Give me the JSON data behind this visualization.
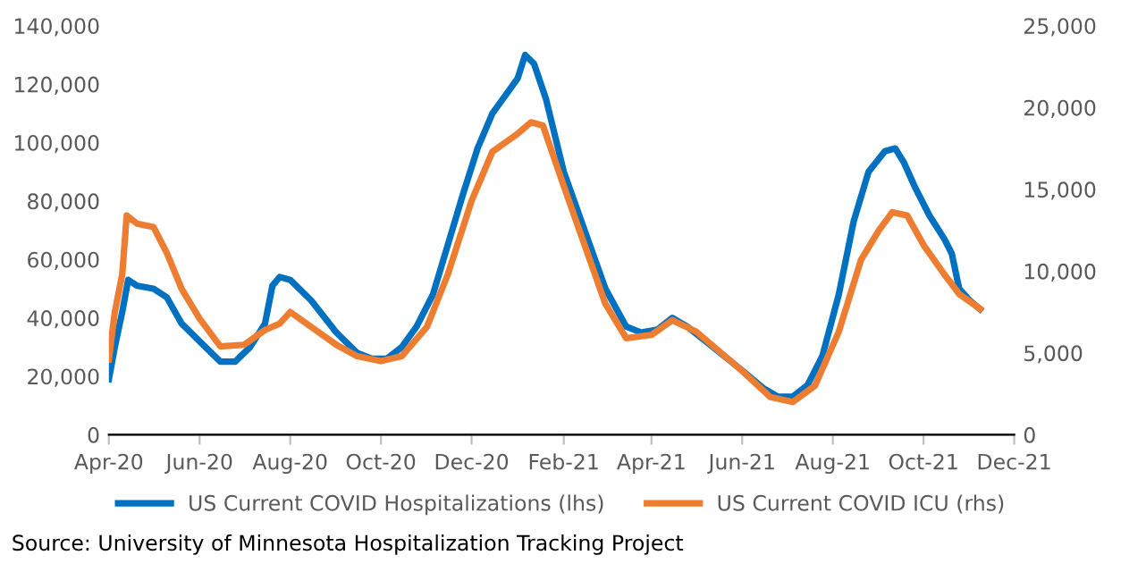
{
  "chart_data": {
    "type": "line",
    "xlim": [
      "2020-04-01",
      "2021-12-01"
    ],
    "xticks": [
      {
        "value": "2020-04-01",
        "label": "Apr-20"
      },
      {
        "value": "2020-06-01",
        "label": "Jun-20"
      },
      {
        "value": "2020-08-01",
        "label": "Aug-20"
      },
      {
        "value": "2020-10-01",
        "label": "Oct-20"
      },
      {
        "value": "2020-12-01",
        "label": "Dec-20"
      },
      {
        "value": "2021-02-01",
        "label": "Feb-21"
      },
      {
        "value": "2021-04-01",
        "label": "Apr-21"
      },
      {
        "value": "2021-06-01",
        "label": "Jun-21"
      },
      {
        "value": "2021-08-01",
        "label": "Aug-21"
      },
      {
        "value": "2021-10-01",
        "label": "Oct-21"
      },
      {
        "value": "2021-12-01",
        "label": "Dec-21"
      }
    ],
    "ylim": [
      0,
      140000
    ],
    "yticks": [
      {
        "value": 0,
        "label": "0"
      },
      {
        "value": 20000,
        "label": "20,000"
      },
      {
        "value": 40000,
        "label": "40,000"
      },
      {
        "value": 60000,
        "label": "60,000"
      },
      {
        "value": 80000,
        "label": "80,000"
      },
      {
        "value": 100000,
        "label": "100,000"
      },
      {
        "value": 120000,
        "label": "120,000"
      },
      {
        "value": 140000,
        "label": "140,000"
      }
    ],
    "y2lim": [
      0,
      25000
    ],
    "y2ticks": [
      {
        "value": 0,
        "label": "0"
      },
      {
        "value": 5000,
        "label": "5,000"
      },
      {
        "value": 10000,
        "label": "10,000"
      },
      {
        "value": 15000,
        "label": "15,000"
      },
      {
        "value": 20000,
        "label": "20,000"
      },
      {
        "value": 25000,
        "label": "25,000"
      }
    ],
    "grid": false,
    "legend": "bottom",
    "line_style": "solid",
    "marker": "none",
    "annotations": [
      "Source: University of Minnesota Hospitalization Tracking Project"
    ],
    "series": [
      {
        "name": "US Current COVID Hospitalizations (lhs)",
        "color": "#0070c0",
        "x": [
          "2020-04-01",
          "2020-04-05",
          "2020-04-10",
          "2020-04-14",
          "2020-04-20",
          "2020-05-01",
          "2020-05-10",
          "2020-05-20",
          "2020-06-01",
          "2020-06-15",
          "2020-06-25",
          "2020-07-05",
          "2020-07-15",
          "2020-07-20",
          "2020-07-25",
          "2020-08-01",
          "2020-08-15",
          "2020-09-01",
          "2020-09-15",
          "2020-09-25",
          "2020-10-05",
          "2020-10-15",
          "2020-10-25",
          "2020-11-05",
          "2020-11-15",
          "2020-11-25",
          "2020-12-05",
          "2020-12-15",
          "2020-12-25",
          "2021-01-01",
          "2021-01-06",
          "2021-01-12",
          "2021-01-20",
          "2021-02-01",
          "2021-02-15",
          "2021-03-01",
          "2021-03-15",
          "2021-03-25",
          "2021-04-05",
          "2021-04-15",
          "2021-04-25",
          "2021-05-10",
          "2021-06-01",
          "2021-06-15",
          "2021-06-25",
          "2021-07-05",
          "2021-07-15",
          "2021-07-25",
          "2021-08-05",
          "2021-08-15",
          "2021-08-25",
          "2021-09-05",
          "2021-09-12",
          "2021-09-18",
          "2021-09-25",
          "2021-10-05",
          "2021-10-15",
          "2021-10-20",
          "2021-10-25",
          "2021-11-01",
          "2021-11-08"
        ],
        "values": [
          19000,
          30000,
          42000,
          53000,
          51000,
          50000,
          47000,
          38000,
          32000,
          25000,
          25000,
          30000,
          38000,
          51000,
          54000,
          53000,
          46000,
          35000,
          28000,
          26000,
          26000,
          30000,
          37000,
          48000,
          65000,
          82000,
          98000,
          110000,
          117000,
          122000,
          130000,
          127000,
          115000,
          90000,
          70000,
          50000,
          37000,
          35000,
          36000,
          40000,
          37000,
          31000,
          22000,
          16000,
          13000,
          13000,
          17000,
          27000,
          48000,
          73000,
          90000,
          97000,
          98000,
          93000,
          85000,
          75000,
          67000,
          62000,
          50000,
          46000,
          43000
        ]
      },
      {
        "name": "US Current COVID ICU (rhs)",
        "color": "#ed7d31",
        "axis": "y2",
        "x": [
          "2020-04-01",
          "2020-04-05",
          "2020-04-10",
          "2020-04-13",
          "2020-04-20",
          "2020-05-01",
          "2020-05-10",
          "2020-05-20",
          "2020-06-01",
          "2020-06-15",
          "2020-07-01",
          "2020-07-15",
          "2020-07-25",
          "2020-08-01",
          "2020-08-15",
          "2020-09-01",
          "2020-09-15",
          "2020-10-01",
          "2020-10-15",
          "2020-11-01",
          "2020-11-15",
          "2020-12-01",
          "2020-12-15",
          "2021-01-01",
          "2021-01-10",
          "2021-01-18",
          "2021-02-01",
          "2021-02-15",
          "2021-03-01",
          "2021-03-15",
          "2021-04-01",
          "2021-04-15",
          "2021-05-01",
          "2021-06-01",
          "2021-06-20",
          "2021-07-05",
          "2021-07-20",
          "2021-08-05",
          "2021-08-20",
          "2021-09-01",
          "2021-09-10",
          "2021-09-20",
          "2021-10-01",
          "2021-10-15",
          "2021-10-25",
          "2021-11-08"
        ],
        "values": [
          4600,
          7500,
          9800,
          13400,
          12900,
          12700,
          11100,
          8900,
          7100,
          5400,
          5500,
          6400,
          6800,
          7500,
          6600,
          5500,
          4800,
          4500,
          4800,
          6600,
          9800,
          14300,
          17300,
          18400,
          19100,
          18900,
          15200,
          11600,
          8000,
          5900,
          6100,
          7000,
          6300,
          3900,
          2300,
          2000,
          3000,
          6300,
          10700,
          12500,
          13600,
          13400,
          11600,
          9800,
          8600,
          7700
        ]
      }
    ]
  }
}
